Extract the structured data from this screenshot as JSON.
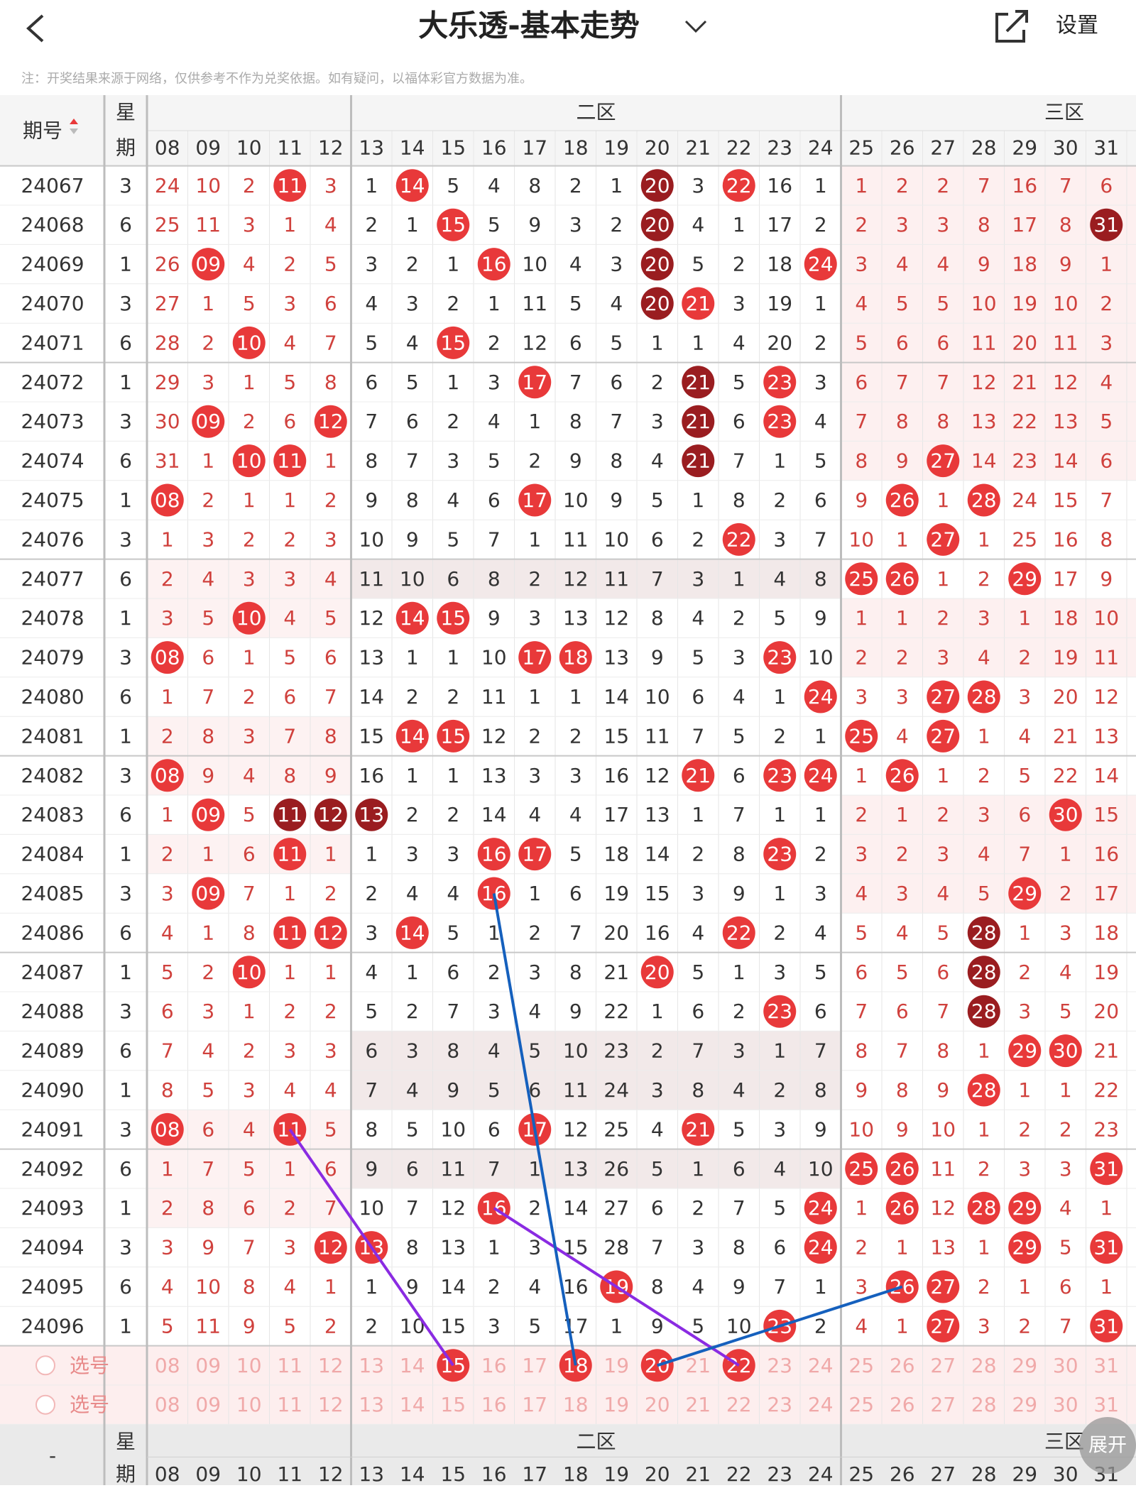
{
  "header": {
    "title": "大乐透-基本走势",
    "action": "设置"
  },
  "note": "注：开奖结果来源于网络，仅供参考不作为兑奖依据。如有疑问，以福体彩官方数据为准。",
  "table": {
    "issue_header": "期号",
    "week_header": [
      "星",
      "期"
    ],
    "zones": [
      "二区",
      "三区"
    ],
    "columns": [
      "08",
      "09",
      "10",
      "11",
      "12",
      "13",
      "14",
      "15",
      "16",
      "17",
      "18",
      "19",
      "20",
      "21",
      "22",
      "23",
      "24",
      "25",
      "26",
      "27",
      "28",
      "29",
      "30",
      "31"
    ],
    "rows": [
      {
        "issue": "24067",
        "week": "3",
        "cells": [
          "24",
          "10",
          "2",
          "11",
          "3",
          "1",
          "14",
          "5",
          "4",
          "8",
          "2",
          "1",
          "20",
          "3",
          "22",
          "16",
          "1",
          "1",
          "2",
          "2",
          "7",
          "16",
          "7",
          "6"
        ],
        "hit": [
          3,
          6,
          12,
          14
        ],
        "dark": [
          12
        ]
      },
      {
        "issue": "24068",
        "week": "6",
        "cells": [
          "25",
          "11",
          "3",
          "1",
          "4",
          "2",
          "1",
          "15",
          "5",
          "9",
          "3",
          "2",
          "20",
          "4",
          "1",
          "17",
          "2",
          "2",
          "3",
          "3",
          "8",
          "17",
          "8",
          "31"
        ],
        "hit": [
          7,
          12,
          23
        ],
        "dark": [
          12,
          23
        ]
      },
      {
        "issue": "24069",
        "week": "1",
        "cells": [
          "26",
          "09",
          "4",
          "2",
          "5",
          "3",
          "2",
          "1",
          "16",
          "10",
          "4",
          "3",
          "20",
          "5",
          "2",
          "18",
          "24",
          "3",
          "4",
          "4",
          "9",
          "18",
          "9",
          "1"
        ],
        "hit": [
          1,
          8,
          12,
          16
        ],
        "dark": [
          12
        ]
      },
      {
        "issue": "24070",
        "week": "3",
        "cells": [
          "27",
          "1",
          "5",
          "3",
          "6",
          "4",
          "3",
          "2",
          "1",
          "11",
          "5",
          "4",
          "20",
          "21",
          "3",
          "19",
          "1",
          "4",
          "5",
          "5",
          "10",
          "19",
          "10",
          "2"
        ],
        "hit": [
          12,
          13
        ],
        "dark": [
          12
        ]
      },
      {
        "issue": "24071",
        "week": "6",
        "cells": [
          "28",
          "2",
          "10",
          "4",
          "7",
          "5",
          "4",
          "15",
          "2",
          "12",
          "6",
          "5",
          "1",
          "1",
          "4",
          "20",
          "2",
          "5",
          "6",
          "6",
          "11",
          "20",
          "11",
          "3"
        ],
        "hit": [
          2,
          7
        ],
        "dark": []
      },
      {
        "issue": "24072",
        "week": "1",
        "cells": [
          "29",
          "3",
          "1",
          "5",
          "8",
          "6",
          "5",
          "1",
          "3",
          "17",
          "7",
          "6",
          "2",
          "21",
          "5",
          "23",
          "3",
          "6",
          "7",
          "7",
          "12",
          "21",
          "12",
          "4"
        ],
        "hit": [
          9,
          13,
          15
        ],
        "dark": [
          13
        ]
      },
      {
        "issue": "24073",
        "week": "3",
        "cells": [
          "30",
          "09",
          "2",
          "6",
          "12",
          "7",
          "6",
          "2",
          "4",
          "1",
          "8",
          "7",
          "3",
          "21",
          "6",
          "23",
          "4",
          "7",
          "8",
          "8",
          "13",
          "22",
          "13",
          "5"
        ],
        "hit": [
          1,
          4,
          13,
          15
        ],
        "dark": [
          13
        ]
      },
      {
        "issue": "24074",
        "week": "6",
        "cells": [
          "31",
          "1",
          "10",
          "11",
          "1",
          "8",
          "7",
          "3",
          "5",
          "2",
          "9",
          "8",
          "4",
          "21",
          "7",
          "1",
          "5",
          "8",
          "9",
          "27",
          "14",
          "23",
          "14",
          "6"
        ],
        "hit": [
          2,
          3,
          13,
          19
        ],
        "dark": [
          13
        ]
      },
      {
        "issue": "24075",
        "week": "1",
        "cells": [
          "08",
          "2",
          "1",
          "1",
          "2",
          "9",
          "8",
          "4",
          "6",
          "17",
          "10",
          "9",
          "5",
          "1",
          "8",
          "2",
          "6",
          "9",
          "26",
          "1",
          "28",
          "24",
          "15",
          "7"
        ],
        "hit": [
          0,
          9,
          18,
          20
        ],
        "dark": []
      },
      {
        "issue": "24076",
        "week": "3",
        "cells": [
          "1",
          "3",
          "2",
          "2",
          "3",
          "10",
          "9",
          "5",
          "7",
          "1",
          "11",
          "10",
          "6",
          "2",
          "22",
          "3",
          "7",
          "10",
          "1",
          "27",
          "1",
          "25",
          "16",
          "8"
        ],
        "hit": [
          14,
          19
        ],
        "dark": []
      },
      {
        "issue": "24077",
        "week": "6",
        "cells": [
          "2",
          "4",
          "3",
          "3",
          "4",
          "11",
          "10",
          "6",
          "8",
          "2",
          "12",
          "11",
          "7",
          "3",
          "1",
          "4",
          "8",
          "25",
          "26",
          "1",
          "2",
          "29",
          "17",
          "9"
        ],
        "hit": [
          17,
          18,
          21
        ],
        "dark": []
      },
      {
        "issue": "24078",
        "week": "1",
        "cells": [
          "3",
          "5",
          "10",
          "4",
          "5",
          "12",
          "14",
          "15",
          "9",
          "3",
          "13",
          "12",
          "8",
          "4",
          "2",
          "5",
          "9",
          "1",
          "1",
          "2",
          "3",
          "1",
          "18",
          "10"
        ],
        "hit": [
          2,
          6,
          7
        ],
        "dark": []
      },
      {
        "issue": "24079",
        "week": "3",
        "cells": [
          "08",
          "6",
          "1",
          "5",
          "6",
          "13",
          "1",
          "1",
          "10",
          "17",
          "18",
          "13",
          "9",
          "5",
          "3",
          "23",
          "10",
          "2",
          "2",
          "3",
          "4",
          "2",
          "19",
          "11"
        ],
        "hit": [
          0,
          9,
          10,
          15
        ],
        "dark": []
      },
      {
        "issue": "24080",
        "week": "6",
        "cells": [
          "1",
          "7",
          "2",
          "6",
          "7",
          "14",
          "2",
          "2",
          "11",
          "1",
          "1",
          "14",
          "10",
          "6",
          "4",
          "1",
          "24",
          "3",
          "3",
          "27",
          "28",
          "3",
          "20",
          "12"
        ],
        "hit": [
          16,
          19,
          20
        ],
        "dark": []
      },
      {
        "issue": "24081",
        "week": "1",
        "cells": [
          "2",
          "8",
          "3",
          "7",
          "8",
          "15",
          "14",
          "15",
          "12",
          "2",
          "2",
          "15",
          "11",
          "7",
          "5",
          "2",
          "1",
          "25",
          "4",
          "27",
          "1",
          "4",
          "21",
          "13"
        ],
        "hit": [
          6,
          7,
          17,
          19
        ],
        "dark": []
      },
      {
        "issue": "24082",
        "week": "3",
        "cells": [
          "08",
          "9",
          "4",
          "8",
          "9",
          "16",
          "1",
          "1",
          "13",
          "3",
          "3",
          "16",
          "12",
          "21",
          "6",
          "23",
          "24",
          "1",
          "26",
          "1",
          "2",
          "5",
          "22",
          "14"
        ],
        "hit": [
          0,
          13,
          15,
          16,
          18
        ],
        "dark": []
      },
      {
        "issue": "24083",
        "week": "6",
        "cells": [
          "1",
          "09",
          "5",
          "11",
          "12",
          "13",
          "2",
          "2",
          "14",
          "4",
          "4",
          "17",
          "13",
          "1",
          "7",
          "1",
          "1",
          "2",
          "1",
          "2",
          "3",
          "6",
          "30",
          "15"
        ],
        "hit": [
          1,
          3,
          4,
          5,
          22
        ],
        "dark": [
          3,
          4,
          5
        ]
      },
      {
        "issue": "24084",
        "week": "1",
        "cells": [
          "2",
          "1",
          "6",
          "11",
          "1",
          "1",
          "3",
          "3",
          "16",
          "17",
          "5",
          "18",
          "14",
          "2",
          "8",
          "23",
          "2",
          "3",
          "2",
          "3",
          "4",
          "7",
          "1",
          "16"
        ],
        "hit": [
          3,
          8,
          9,
          15
        ],
        "dark": []
      },
      {
        "issue": "24085",
        "week": "3",
        "cells": [
          "3",
          "09",
          "7",
          "1",
          "2",
          "2",
          "4",
          "4",
          "16",
          "1",
          "6",
          "19",
          "15",
          "3",
          "9",
          "1",
          "3",
          "4",
          "3",
          "4",
          "5",
          "29",
          "2",
          "17"
        ],
        "hit": [
          1,
          8,
          21
        ],
        "dark": []
      },
      {
        "issue": "24086",
        "week": "6",
        "cells": [
          "4",
          "1",
          "8",
          "11",
          "12",
          "3",
          "14",
          "5",
          "1",
          "2",
          "7",
          "20",
          "16",
          "4",
          "22",
          "2",
          "4",
          "5",
          "4",
          "5",
          "28",
          "1",
          "3",
          "18"
        ],
        "hit": [
          3,
          4,
          6,
          14,
          20
        ],
        "dark": [
          20
        ]
      },
      {
        "issue": "24087",
        "week": "1",
        "cells": [
          "5",
          "2",
          "10",
          "1",
          "1",
          "4",
          "1",
          "6",
          "2",
          "3",
          "8",
          "21",
          "20",
          "5",
          "1",
          "3",
          "5",
          "6",
          "5",
          "6",
          "28",
          "2",
          "4",
          "19"
        ],
        "hit": [
          2,
          12,
          20
        ],
        "dark": [
          20
        ]
      },
      {
        "issue": "24088",
        "week": "3",
        "cells": [
          "6",
          "3",
          "1",
          "2",
          "2",
          "5",
          "2",
          "7",
          "3",
          "4",
          "9",
          "22",
          "1",
          "6",
          "2",
          "23",
          "6",
          "7",
          "6",
          "7",
          "28",
          "3",
          "5",
          "20"
        ],
        "hit": [
          15,
          20
        ],
        "dark": [
          20
        ]
      },
      {
        "issue": "24089",
        "week": "6",
        "cells": [
          "7",
          "4",
          "2",
          "3",
          "3",
          "6",
          "3",
          "8",
          "4",
          "5",
          "10",
          "23",
          "2",
          "7",
          "3",
          "1",
          "7",
          "8",
          "7",
          "8",
          "1",
          "29",
          "30",
          "21"
        ],
        "hit": [
          21,
          22
        ],
        "dark": []
      },
      {
        "issue": "24090",
        "week": "1",
        "cells": [
          "8",
          "5",
          "3",
          "4",
          "4",
          "7",
          "4",
          "9",
          "5",
          "6",
          "11",
          "24",
          "3",
          "8",
          "4",
          "2",
          "8",
          "9",
          "8",
          "9",
          "28",
          "1",
          "1",
          "22"
        ],
        "hit": [
          20
        ],
        "dark": []
      },
      {
        "issue": "24091",
        "week": "3",
        "cells": [
          "08",
          "6",
          "4",
          "11",
          "5",
          "8",
          "5",
          "10",
          "6",
          "17",
          "12",
          "25",
          "4",
          "21",
          "5",
          "3",
          "9",
          "10",
          "9",
          "10",
          "1",
          "2",
          "2",
          "23"
        ],
        "hit": [
          0,
          3,
          9,
          13
        ],
        "dark": []
      },
      {
        "issue": "24092",
        "week": "6",
        "cells": [
          "1",
          "7",
          "5",
          "1",
          "6",
          "9",
          "6",
          "11",
          "7",
          "1",
          "13",
          "26",
          "5",
          "1",
          "6",
          "4",
          "10",
          "25",
          "26",
          "11",
          "2",
          "3",
          "3",
          "31"
        ],
        "hit": [
          17,
          18,
          23
        ],
        "dark": []
      },
      {
        "issue": "24093",
        "week": "1",
        "cells": [
          "2",
          "8",
          "6",
          "2",
          "7",
          "10",
          "7",
          "12",
          "16",
          "2",
          "14",
          "27",
          "6",
          "2",
          "7",
          "5",
          "24",
          "1",
          "26",
          "12",
          "28",
          "29",
          "4",
          "1"
        ],
        "hit": [
          8,
          16,
          18,
          20,
          21
        ],
        "dark": []
      },
      {
        "issue": "24094",
        "week": "3",
        "cells": [
          "3",
          "9",
          "7",
          "3",
          "12",
          "13",
          "8",
          "13",
          "1",
          "3",
          "15",
          "28",
          "7",
          "3",
          "8",
          "6",
          "24",
          "2",
          "1",
          "13",
          "1",
          "29",
          "5",
          "31"
        ],
        "hit": [
          4,
          5,
          16,
          21,
          23
        ],
        "dark": []
      },
      {
        "issue": "24095",
        "week": "6",
        "cells": [
          "4",
          "10",
          "8",
          "4",
          "1",
          "1",
          "9",
          "14",
          "2",
          "4",
          "16",
          "19",
          "8",
          "4",
          "9",
          "7",
          "1",
          "3",
          "26",
          "27",
          "2",
          "1",
          "6",
          "1"
        ],
        "hit": [
          11,
          18,
          19
        ],
        "dark": []
      },
      {
        "issue": "24096",
        "week": "1",
        "cells": [
          "5",
          "11",
          "9",
          "5",
          "2",
          "2",
          "10",
          "15",
          "3",
          "5",
          "17",
          "1",
          "9",
          "5",
          "10",
          "23",
          "2",
          "4",
          "1",
          "27",
          "3",
          "2",
          "7",
          "31"
        ],
        "hit": [
          15,
          19,
          23
        ],
        "dark": []
      }
    ],
    "select_label": "选号",
    "selected": [
      [
        7,
        10,
        12,
        14
      ],
      []
    ]
  },
  "footer": {
    "issue": "-",
    "expand": "展开"
  }
}
